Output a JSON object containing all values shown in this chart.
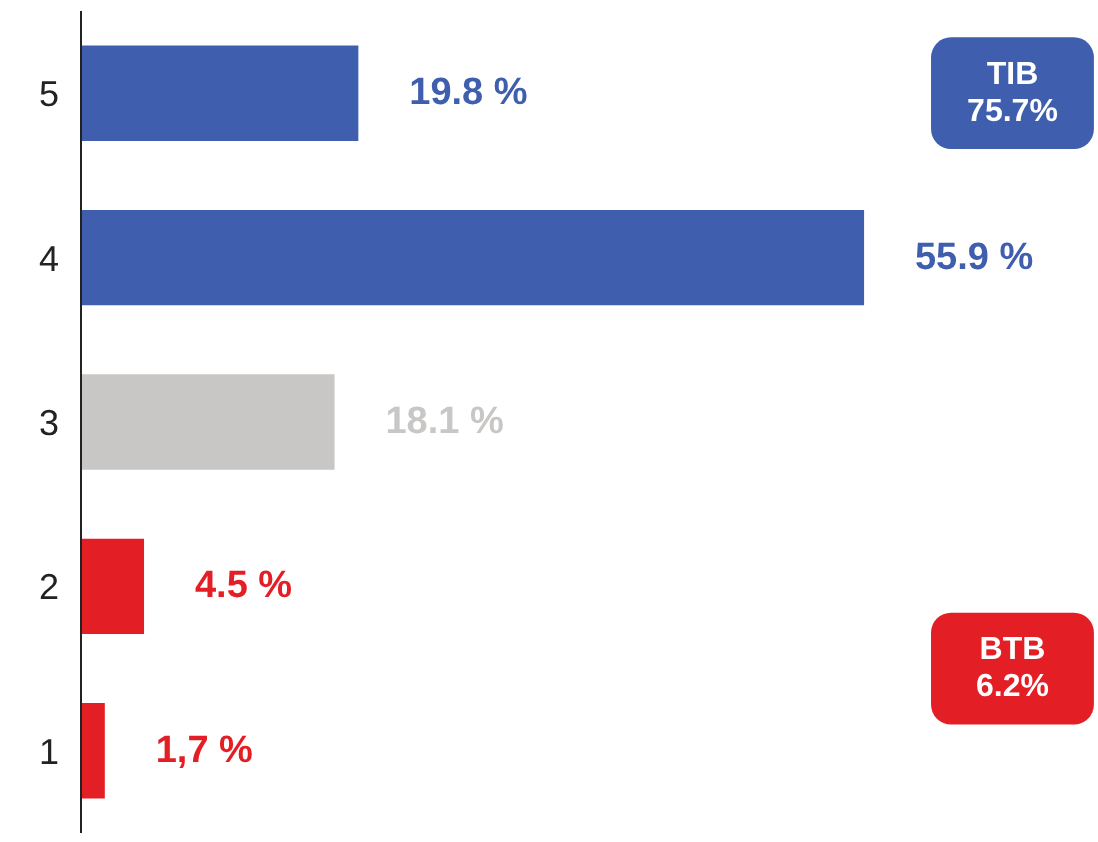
{
  "chart_data": {
    "type": "bar",
    "orientation": "horizontal",
    "relative": false,
    "categories": [
      "5",
      "4",
      "3",
      "2",
      "1"
    ],
    "values": [
      19.8,
      55.9,
      18.1,
      4.5,
      1.7
    ],
    "colors": [
      "#3f5fae",
      "#3f5fae",
      "#c8c7c5",
      "#e31e25",
      "#e31e25"
    ],
    "value_labels": [
      "19.8 %",
      "55.9 %",
      "18.1 %",
      "4.5 %",
      "1,7 %"
    ],
    "annotations": [
      "TIB\n75.7%",
      "BTB\n6.2%"
    ],
    "grid": false
  }
}
